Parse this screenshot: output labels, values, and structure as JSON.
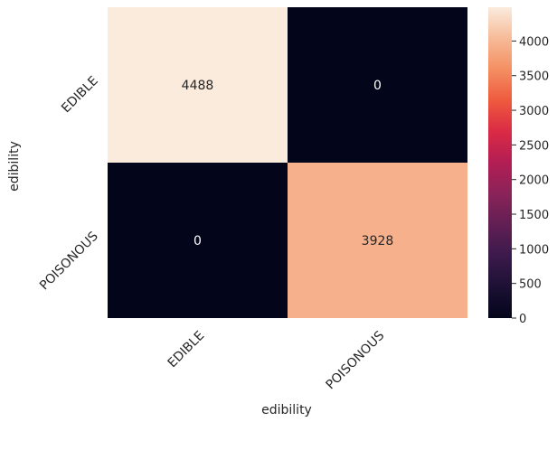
{
  "chart_data": {
    "type": "heatmap",
    "title": "",
    "xlabel": "edibility",
    "ylabel": "edibility",
    "x_categories": [
      "EDIBLE",
      "POISONOUS"
    ],
    "y_categories": [
      "EDIBLE",
      "POISONOUS"
    ],
    "values": [
      [
        4488,
        0
      ],
      [
        0,
        3928
      ]
    ],
    "annotations": [
      [
        "4488",
        "0"
      ],
      [
        "0",
        "3928"
      ]
    ],
    "colormap": "rocket",
    "colorbar": {
      "ticks": [
        "0",
        "500",
        "1000",
        "1500",
        "2000",
        "2500",
        "3000",
        "3500",
        "4000"
      ],
      "range": [
        0,
        4488
      ]
    },
    "tick_rotation_deg": 45
  }
}
